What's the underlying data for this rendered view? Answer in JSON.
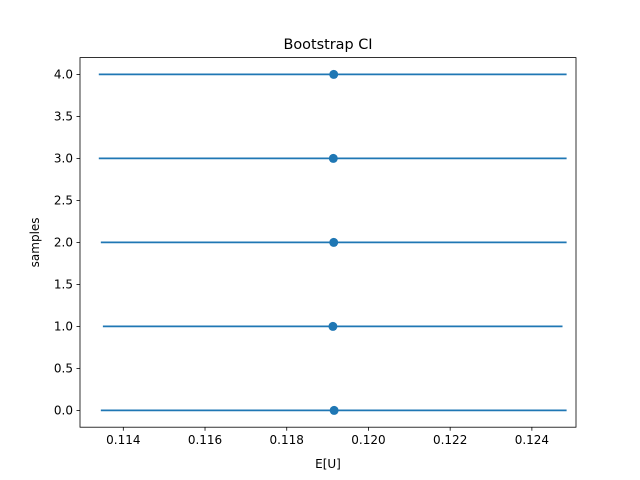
{
  "chart_data": {
    "type": "errorbar",
    "title": "Bootstrap CI",
    "xlabel": "E[U]",
    "ylabel": "samples",
    "xlim": [
      0.11294,
      0.12508
    ],
    "ylim": [
      -0.2,
      4.2
    ],
    "x_ticks": [
      {
        "value": 0.114,
        "label": "0.114"
      },
      {
        "value": 0.116,
        "label": "0.116"
      },
      {
        "value": 0.118,
        "label": "0.118"
      },
      {
        "value": 0.12,
        "label": "0.120"
      },
      {
        "value": 0.122,
        "label": "0.122"
      },
      {
        "value": 0.124,
        "label": "0.124"
      }
    ],
    "y_ticks": [
      {
        "value": 0.0,
        "label": "0.0"
      },
      {
        "value": 0.5,
        "label": "0.5"
      },
      {
        "value": 1.0,
        "label": "1.0"
      },
      {
        "value": 1.5,
        "label": "1.5"
      },
      {
        "value": 2.0,
        "label": "2.0"
      },
      {
        "value": 2.5,
        "label": "2.5"
      },
      {
        "value": 3.0,
        "label": "3.0"
      },
      {
        "value": 3.5,
        "label": "3.5"
      },
      {
        "value": 4.0,
        "label": "4.0"
      }
    ],
    "color": "#1f77b4",
    "grid": false,
    "points": [
      {
        "sample": 0,
        "estimate": 0.11916,
        "low": 0.11345,
        "high": 0.12485
      },
      {
        "sample": 1,
        "estimate": 0.11913,
        "low": 0.1135,
        "high": 0.12475
      },
      {
        "sample": 2,
        "estimate": 0.11915,
        "low": 0.11345,
        "high": 0.12485
      },
      {
        "sample": 3,
        "estimate": 0.11914,
        "low": 0.1134,
        "high": 0.12485
      },
      {
        "sample": 4,
        "estimate": 0.11915,
        "low": 0.1134,
        "high": 0.12485
      }
    ]
  }
}
